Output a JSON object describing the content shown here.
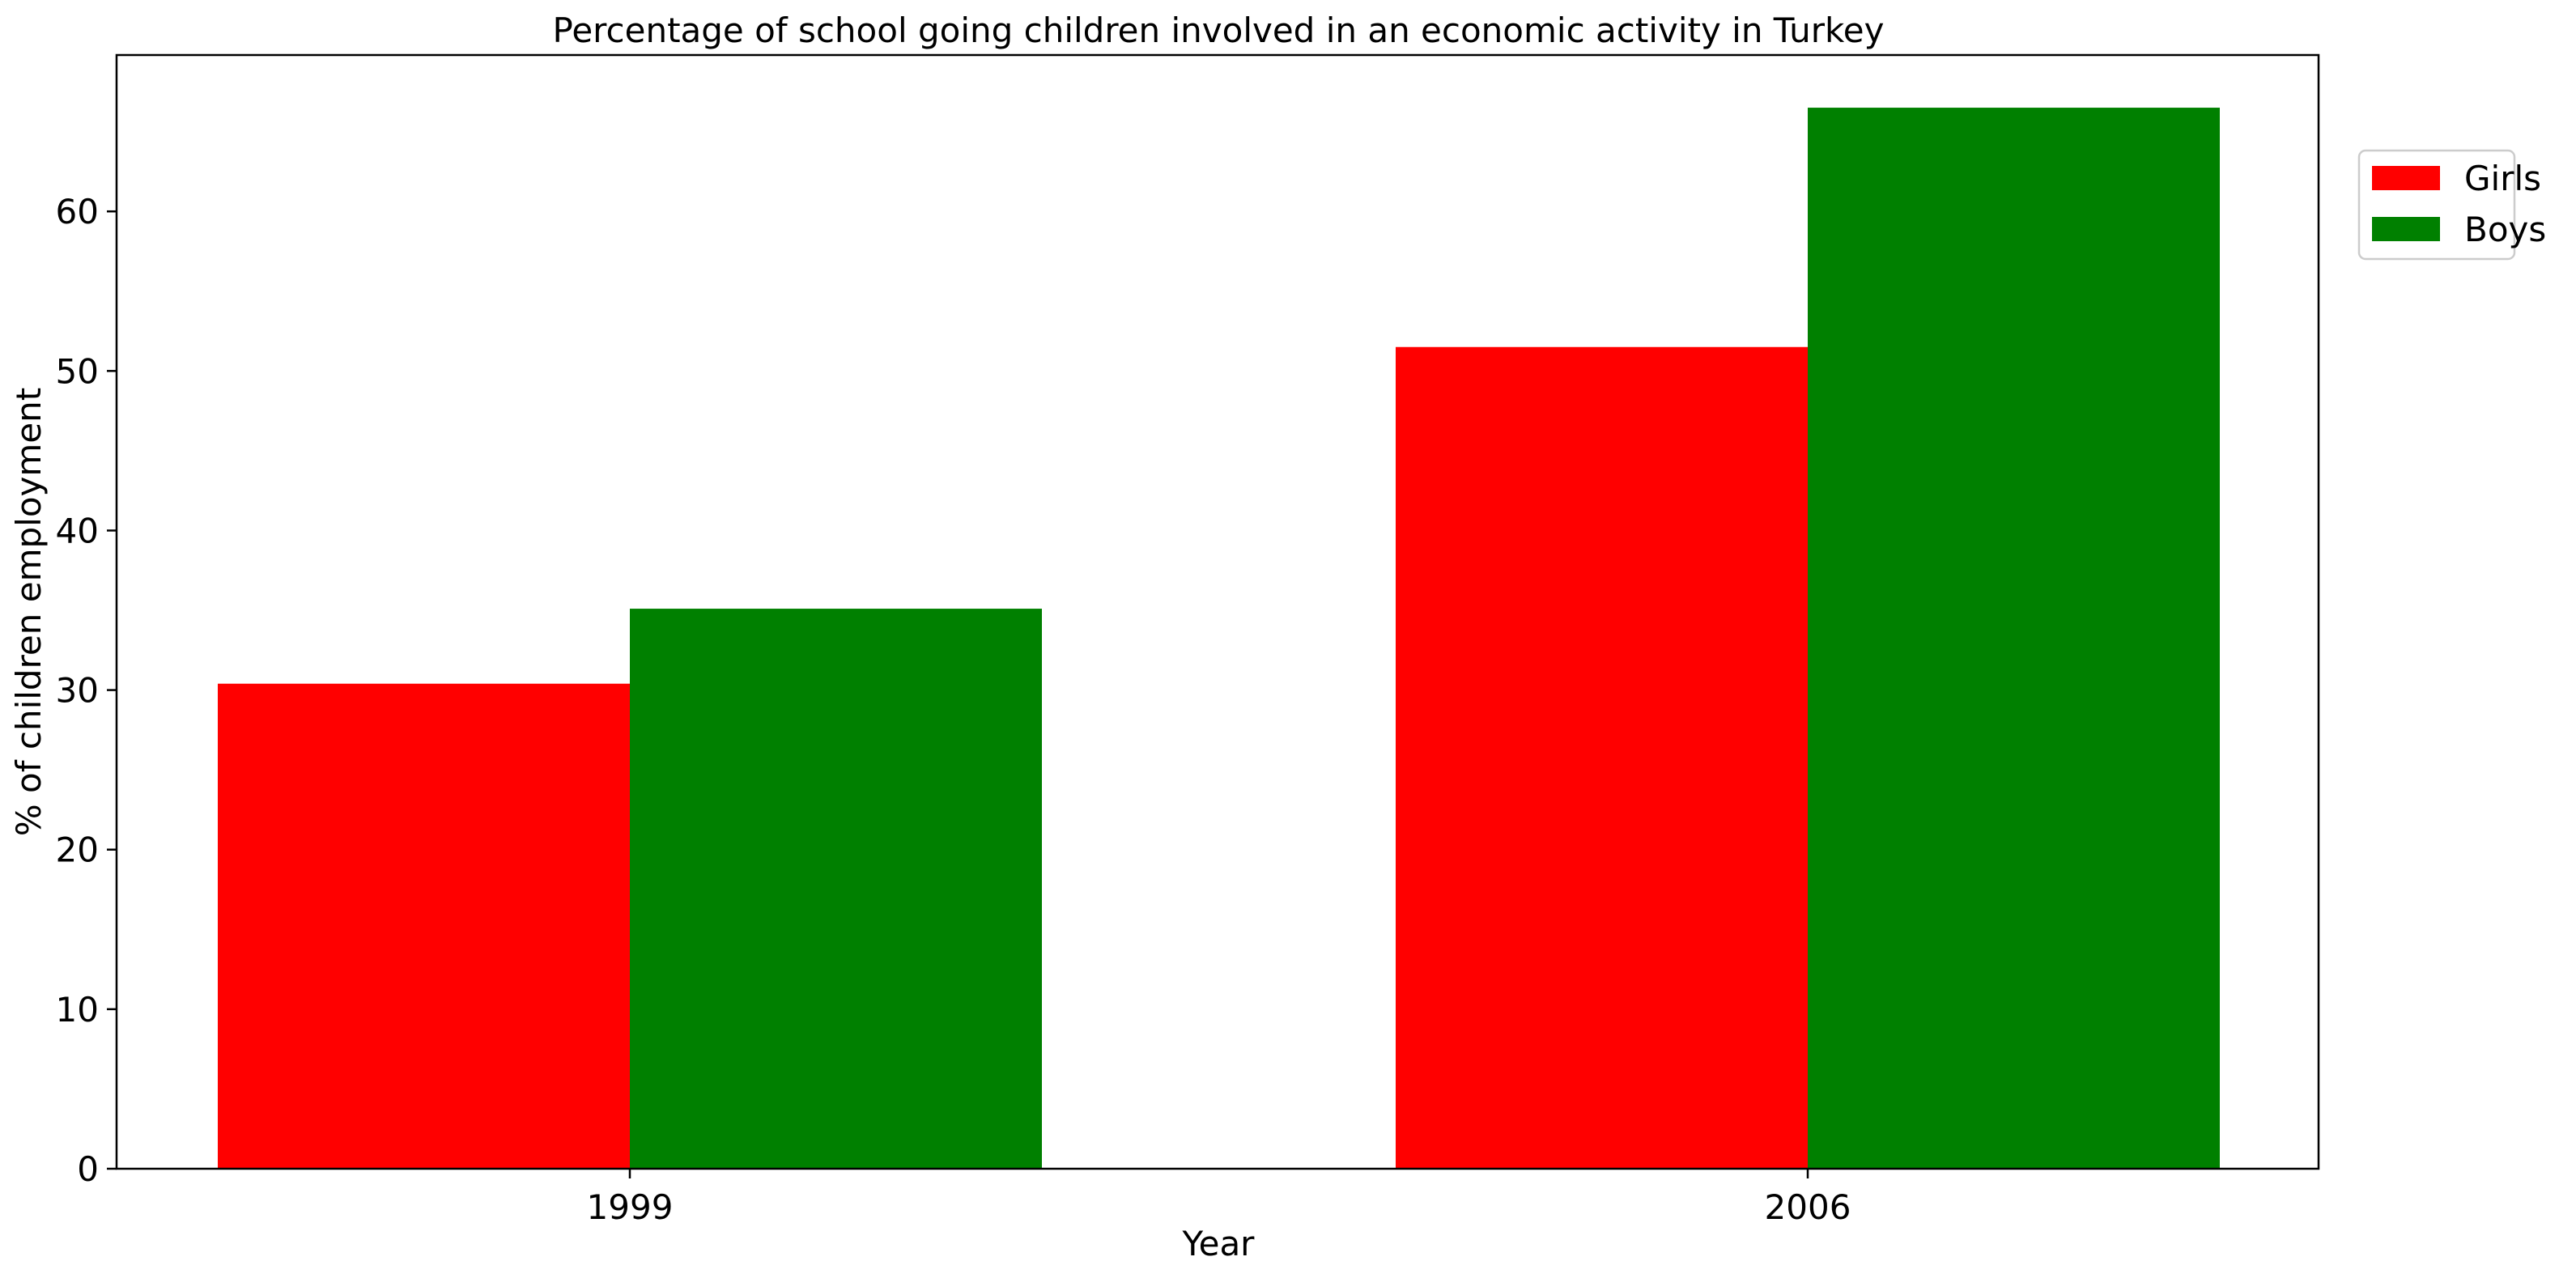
{
  "chart_data": {
    "type": "bar",
    "title": "Percentage of school going children involved in an economic activity in Turkey",
    "xlabel": "Year",
    "ylabel": "% of children employment",
    "categories": [
      "1999",
      "2006"
    ],
    "series": [
      {
        "name": "Girls",
        "values": [
          30.4,
          51.5
        ],
        "color": "#ff0000"
      },
      {
        "name": "Boys",
        "values": [
          35.1,
          66.5
        ],
        "color": "#008000"
      }
    ],
    "ylim": [
      0,
      69.8
    ],
    "yticks": [
      0,
      10,
      20,
      30,
      40,
      50,
      60
    ],
    "grid": false,
    "legend_position": "upper-right-outside"
  }
}
